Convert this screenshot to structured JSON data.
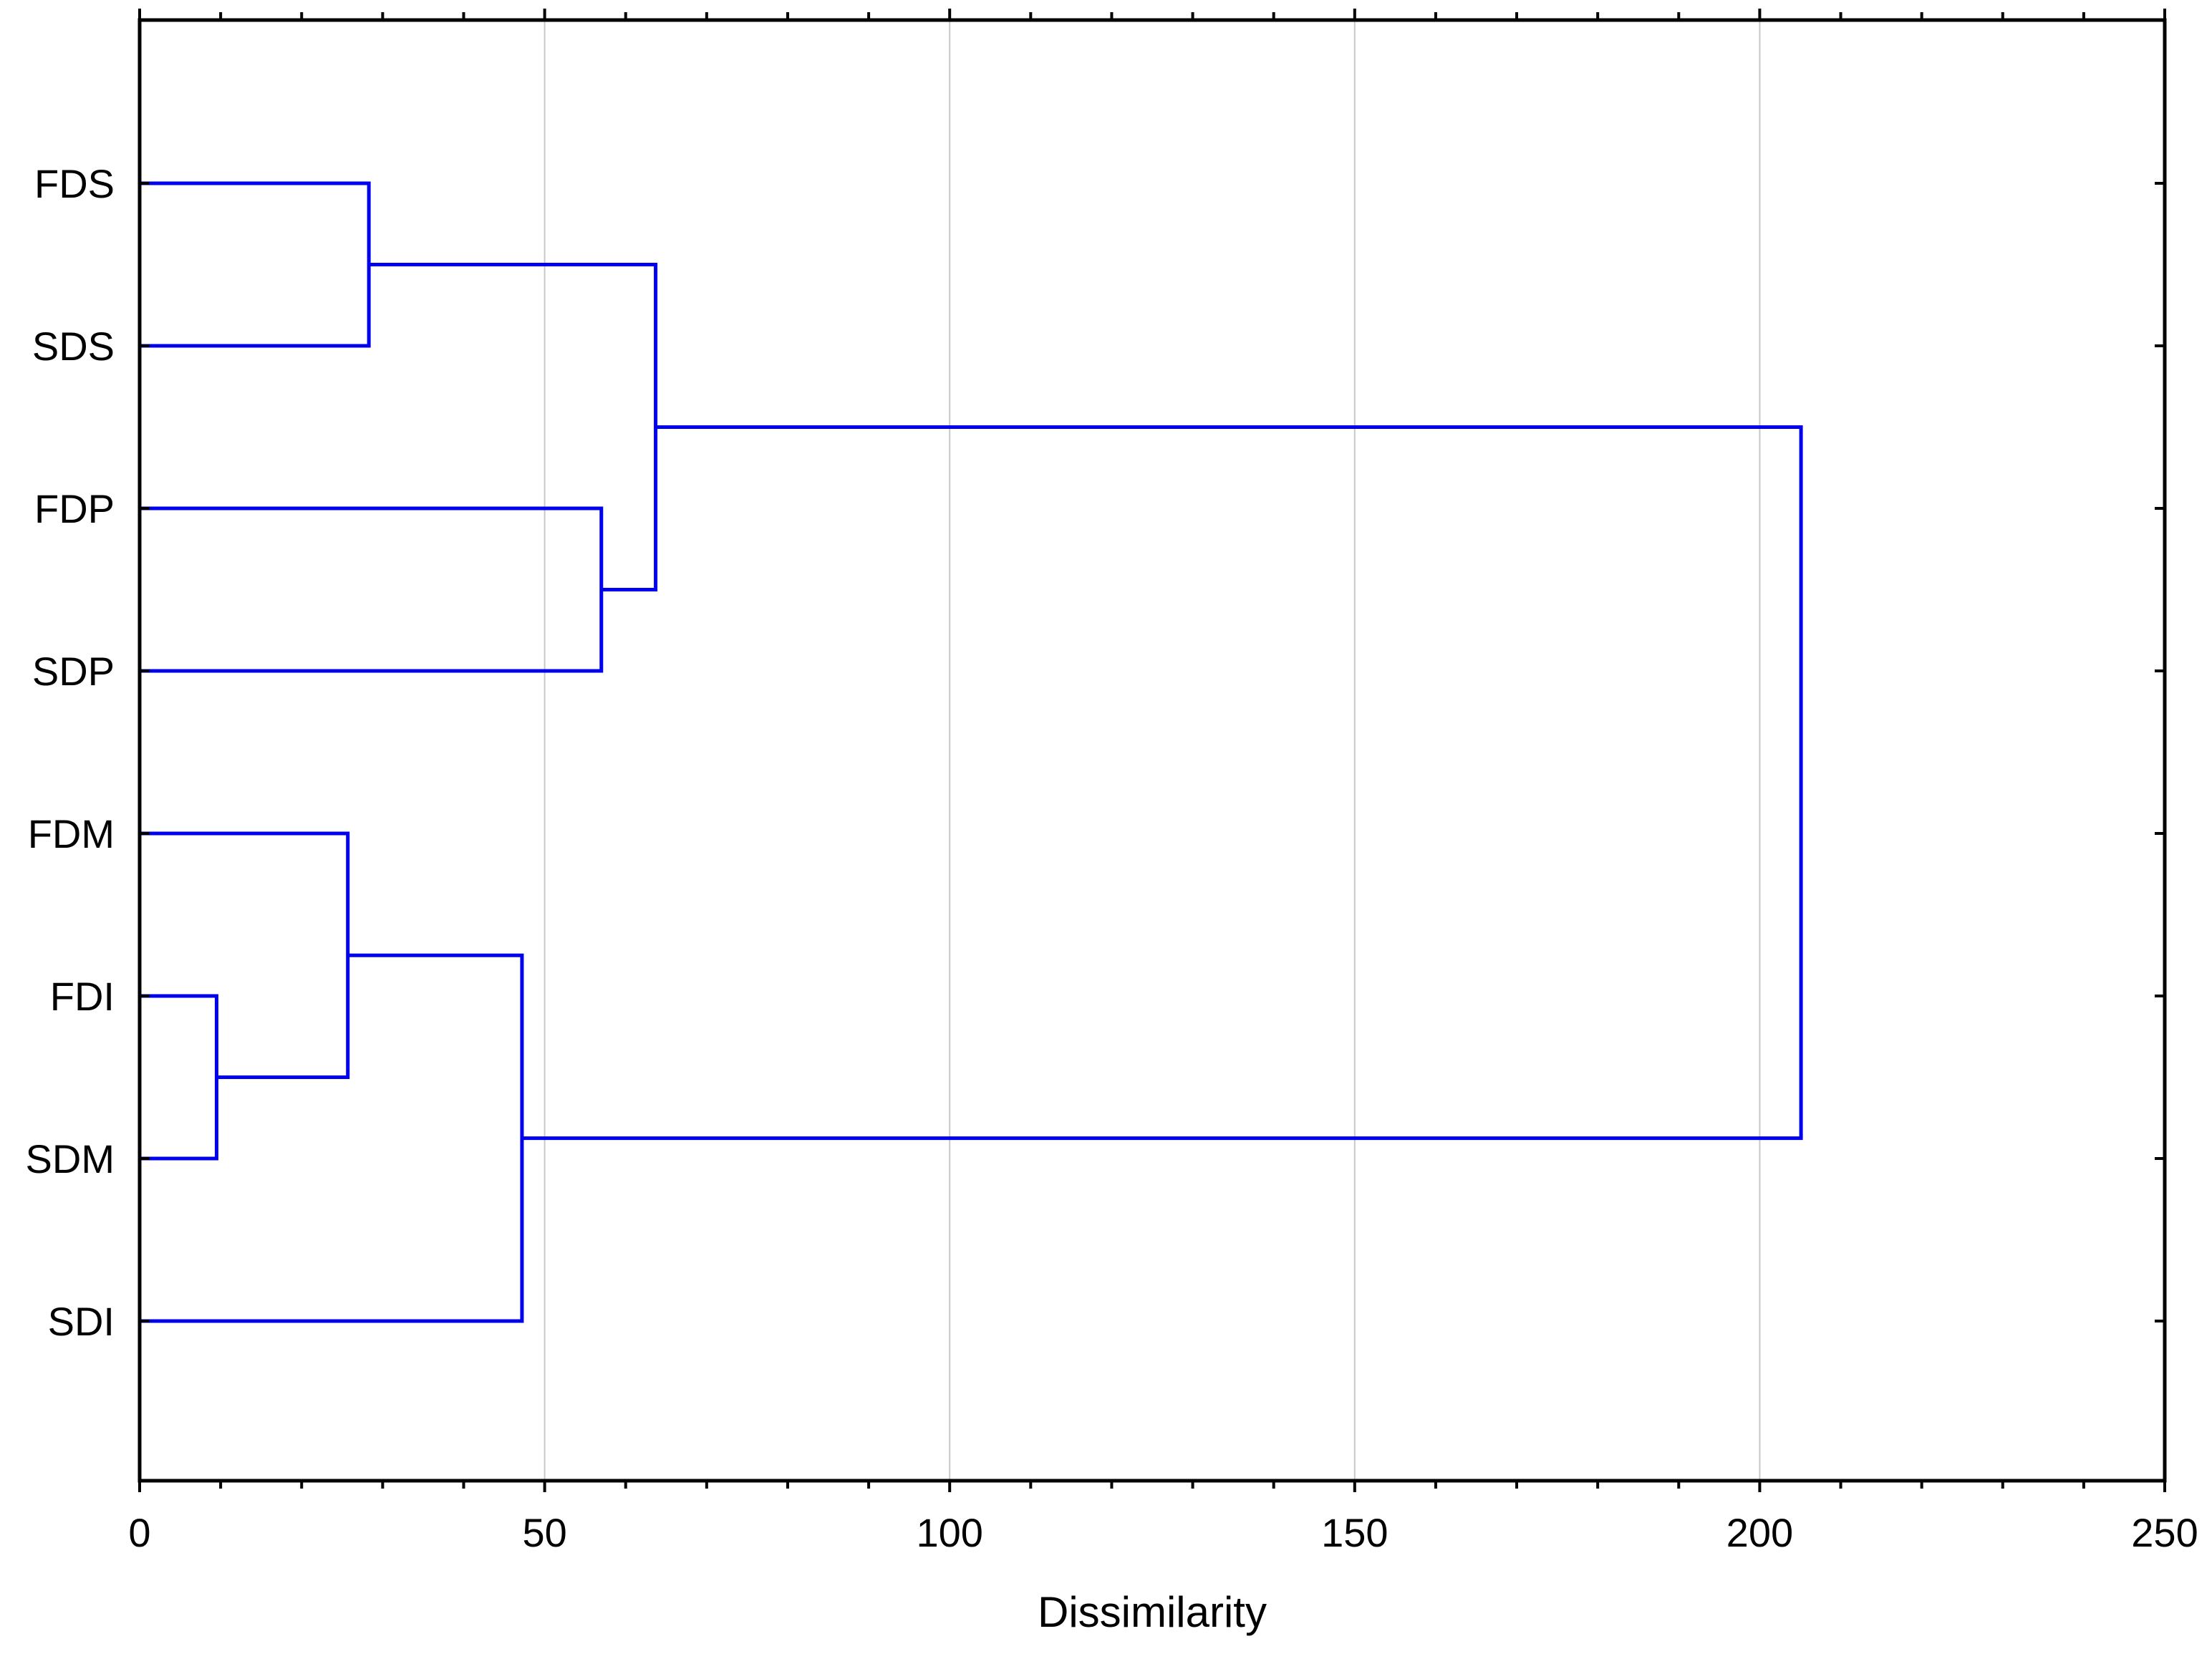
{
  "chart_data": {
    "type": "dendrogram",
    "orientation": "horizontal",
    "xlabel": "Dissimilarity",
    "xlim": [
      0,
      250
    ],
    "xticks": [
      0,
      50,
      100,
      150,
      200,
      250
    ],
    "minor_tick_step": 10,
    "grid": "vertical-major",
    "leaves": [
      "FDS",
      "SDS",
      "FDP",
      "SDP",
      "FDM",
      "FDI",
      "SDM",
      "SDI"
    ],
    "merges": [
      {
        "id": "c1",
        "children": [
          "FDI",
          "SDM"
        ],
        "height": 9.5
      },
      {
        "id": "c2",
        "children": [
          "FDM",
          "c1"
        ],
        "height": 25.7
      },
      {
        "id": "c3",
        "children": [
          "FDS",
          "SDS"
        ],
        "height": 28.3
      },
      {
        "id": "c4",
        "children": [
          "c2",
          "SDI"
        ],
        "height": 47.2
      },
      {
        "id": "c5",
        "children": [
          "FDP",
          "SDP"
        ],
        "height": 57.0
      },
      {
        "id": "c6",
        "children": [
          "c3",
          "c5"
        ],
        "height": 63.7
      },
      {
        "id": "c7",
        "children": [
          "c6",
          "c4"
        ],
        "height": 205.1
      }
    ],
    "colors": {
      "tree": "#0000ee",
      "grid": "#c8c8c8",
      "axis": "#000000"
    }
  }
}
